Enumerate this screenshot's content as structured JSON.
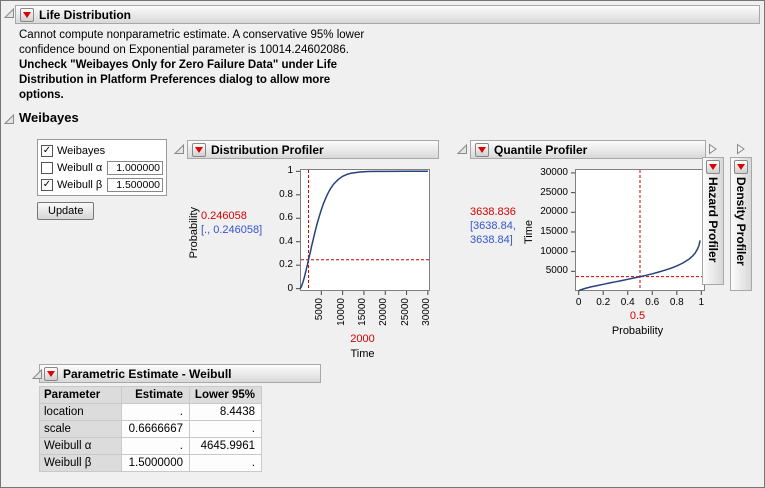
{
  "window": {
    "title": "Life Distribution"
  },
  "warning": {
    "lines": [
      "Cannot compute nonparametric estimate. A conservative 95% lower",
      "confidence bound on Exponential parameter is 10014.24602086."
    ],
    "bold_lines": [
      "Uncheck \"Weibayes Only for Zero Failure Data\" under Life",
      "Distribution in Platform Preferences dialog to allow more",
      "options."
    ]
  },
  "weibayes": {
    "title": "Weibayes",
    "checkboxes": [
      {
        "label": "Weibayes",
        "checked": true
      },
      {
        "label": "Weibull α",
        "checked": false,
        "value": "1.000000"
      },
      {
        "label": "Weibull β",
        "checked": true,
        "value": "1.500000"
      }
    ],
    "update_label": "Update"
  },
  "collapsed_panels": [
    {
      "title": "Hazard Profiler"
    },
    {
      "title": "Density Profiler"
    }
  ],
  "parametric": {
    "title": "Parametric Estimate - Weibull",
    "columns": [
      "Parameter",
      "Estimate",
      "Lower 95%"
    ],
    "rows": [
      [
        "location",
        ".",
        "8.4438"
      ],
      [
        "scale",
        "0.6666667",
        "."
      ],
      [
        "Weibull α",
        ".",
        "4645.9961"
      ],
      [
        "Weibull β",
        "1.5000000",
        "."
      ]
    ]
  },
  "colors": {
    "accent_red": "#d40000",
    "interval_blue": "#3355cc",
    "curve_navy": "#26417c",
    "crosshair_red": "#cc0000"
  },
  "chart_data": [
    {
      "name": "distribution",
      "type": "line",
      "title": "Distribution Profiler",
      "xlabel": "Time",
      "ylabel": "Probability",
      "xlim": [
        0,
        30500
      ],
      "ylim": [
        -0.02,
        1.02
      ],
      "x_ticks": [
        5000,
        10000,
        15000,
        20000,
        25000,
        30000
      ],
      "y_ticks": [
        0,
        0.2,
        0.4,
        0.6,
        0.8,
        1
      ],
      "x_ticks_rotated": true,
      "grid": false,
      "crosshair": {
        "x": 2000,
        "y": 0.246058
      },
      "crosshair_color": "#cc0000",
      "current_x": "2000",
      "current_y": "0.246058",
      "current_y_interval_lines": [
        "[., 0.246058]"
      ],
      "series": [
        {
          "name": "Weibull CDF (alpha 4645.9961, beta 1.5)",
          "color": "#26417c",
          "x": [
            0,
            250,
            500,
            750,
            1000,
            1250,
            1500,
            1750,
            2000,
            2250,
            2500,
            2750,
            3000,
            3250,
            3500,
            3750,
            4000,
            4500,
            5000,
            5500,
            6000,
            6500,
            7000,
            7500,
            8000,
            9000,
            10000,
            11000,
            12000,
            14000,
            16000,
            18000,
            20000,
            25000,
            30000
          ],
          "y": [
            0,
            0.0124,
            0.0347,
            0.0628,
            0.095,
            0.1303,
            0.1676,
            0.2064,
            0.2461,
            0.2861,
            0.3261,
            0.3658,
            0.4048,
            0.443,
            0.48,
            0.5157,
            0.5501,
            0.6145,
            0.6725,
            0.7242,
            0.7696,
            0.8089,
            0.8427,
            0.8714,
            0.8956,
            0.9325,
            0.9575,
            0.9738,
            0.9842,
            0.9947,
            0.9983,
            0.9995,
            0.9999,
            1.0,
            1.0
          ]
        }
      ]
    },
    {
      "name": "quantile",
      "type": "line",
      "title": "Quantile Profiler",
      "xlabel": "Probability",
      "ylabel": "Time",
      "xlim": [
        -0.03,
        1.03
      ],
      "ylim": [
        0,
        31000
      ],
      "x_ticks": [
        0,
        0.2,
        0.4,
        0.6,
        0.8,
        1
      ],
      "y_ticks": [
        5000,
        10000,
        15000,
        20000,
        25000,
        30000
      ],
      "x_ticks_rotated": false,
      "grid": false,
      "crosshair": {
        "x": 0.5,
        "y": 3638.836
      },
      "crosshair_color": "#cc0000",
      "current_x": "0.5",
      "current_y": "3638.836",
      "current_y_interval_lines": [
        "[3638.84,",
        "3638.84]"
      ],
      "series": [
        {
          "name": "Weibull quantile (alpha 4645.9961, beta 1.5)",
          "color": "#26417c",
          "x": [
            0.001,
            0.01,
            0.05,
            0.1,
            0.15,
            0.2,
            0.25,
            0.3,
            0.35,
            0.4,
            0.45,
            0.5,
            0.55,
            0.6,
            0.65,
            0.7,
            0.75,
            0.8,
            0.85,
            0.9,
            0.93,
            0.95,
            0.97,
            0.98,
            0.99
          ],
          "y": [
            47,
            216,
            641,
            1037,
            1384,
            1709,
            2028,
            2337,
            2650,
            2969,
            3297,
            3639,
            3999,
            4383,
            4799,
            5258,
            5776,
            6380,
            7120,
            8101,
            8918,
            9655,
            10723,
            11535,
            12860
          ]
        }
      ]
    }
  ]
}
